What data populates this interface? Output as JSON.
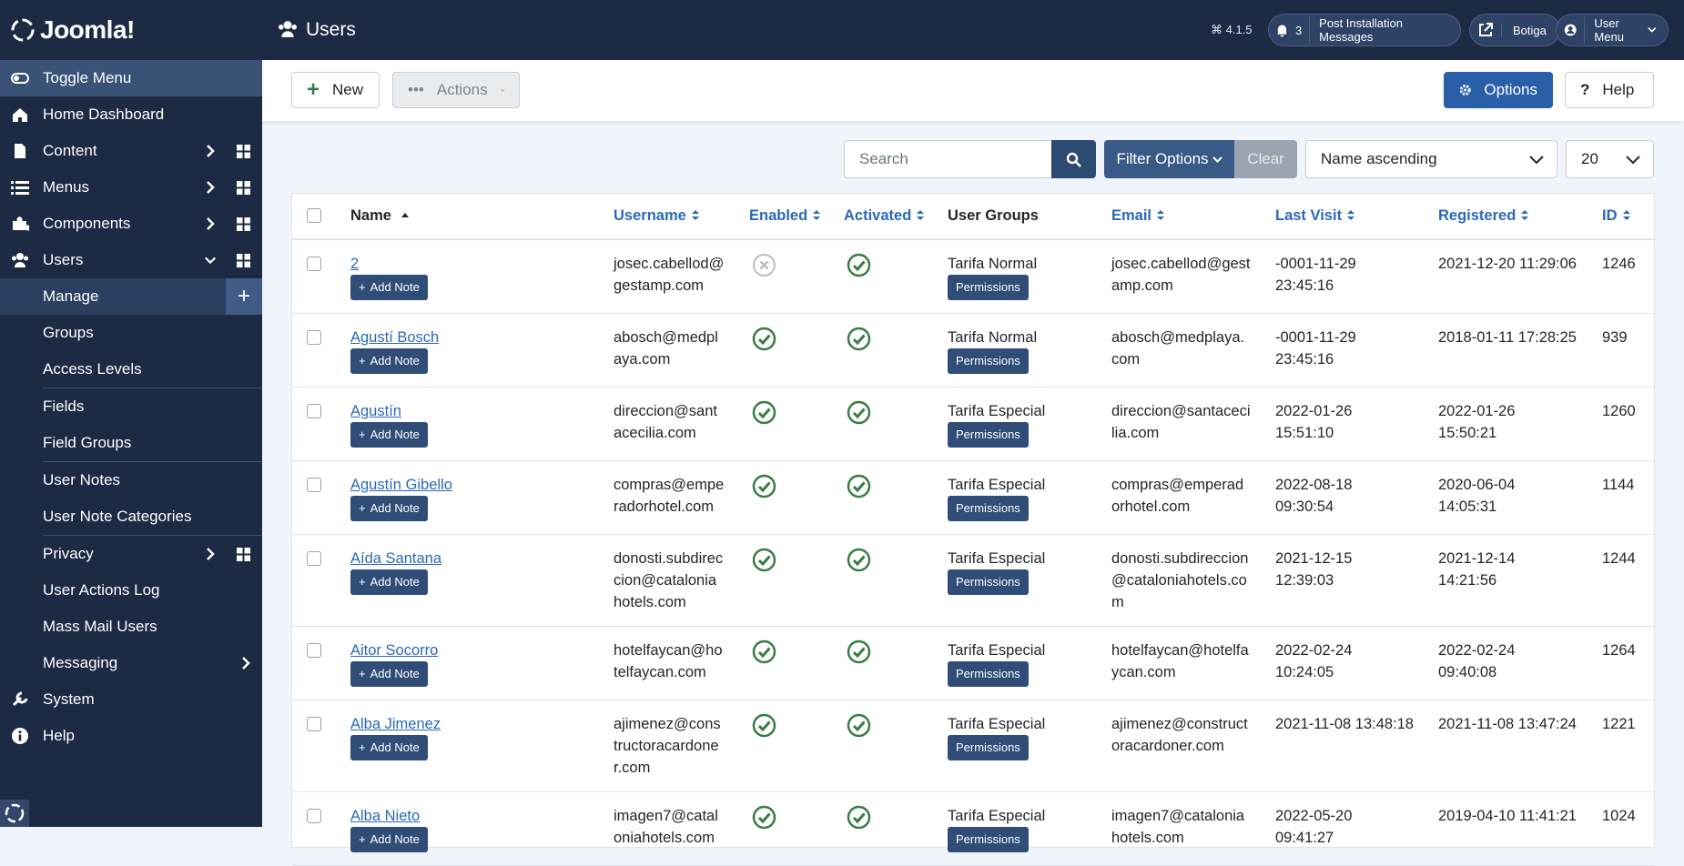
{
  "header": {
    "brand": "Joomla!",
    "title": "Users",
    "version": "4.1.5",
    "messages_count": 3,
    "messages": "Post Installation Messages",
    "site": "Botiga",
    "user_menu": "User Menu"
  },
  "sidebar": {
    "toggle_menu": "Toggle Menu",
    "items": [
      "Home Dashboard",
      "Content",
      "Menus",
      "Components",
      "Users"
    ],
    "users_submenu": [
      "Manage",
      "Groups",
      "Access Levels",
      "Fields",
      "Field Groups",
      "User Notes",
      "User Note Categories",
      "Privacy",
      "User Actions Log",
      "Mass Mail Users",
      "Messaging"
    ],
    "bottom_items": [
      "System",
      "Help"
    ]
  },
  "toolbar": {
    "new": "New",
    "actions": "Actions",
    "options": "Options",
    "help": "Help"
  },
  "filters": {
    "search_placeholder": "Search",
    "filter_options": "Filter Options",
    "clear": "Clear",
    "ordering": "Name ascending",
    "list_limit": 20
  },
  "table": {
    "columns": [
      "Name",
      "Username",
      "Enabled",
      "Activated",
      "User Groups",
      "Email",
      "Last Visit",
      "Registered",
      "ID"
    ],
    "add_note": "Add Note",
    "permissions": "Permissions",
    "rows": [
      {
        "name": "2",
        "username": "josec.cabellod@gestamp.com",
        "enabled": false,
        "activated": true,
        "user_group": "Tarifa Normal",
        "email": "josec.cabellod@gestamp.com",
        "last_visit": "-0001-11-29 23:45:16",
        "registered": "2021-12-20 11:29:06",
        "id": 1246
      },
      {
        "name": "Agustí Bosch",
        "username": "abosch@medplaya.com",
        "enabled": true,
        "activated": true,
        "user_group": "Tarifa Normal",
        "email": "abosch@medplaya.com",
        "last_visit": "-0001-11-29 23:45:16",
        "registered": "2018-01-11 17:28:25",
        "id": 939
      },
      {
        "name": "Agustín",
        "username": "direccion@santacecilia.com",
        "enabled": true,
        "activated": true,
        "user_group": "Tarifa Especial",
        "email": "direccion@santacecilia.com",
        "last_visit": "2022-01-26 15:51:10",
        "registered": "2022-01-26 15:50:21",
        "id": 1260
      },
      {
        "name": "Agustín Gibello",
        "username": "compras@emperadorhotel.com",
        "enabled": true,
        "activated": true,
        "user_group": "Tarifa Especial",
        "email": "compras@emperadorhotel.com",
        "last_visit": "2022-08-18 09:30:54",
        "registered": "2020-06-04 14:05:31",
        "id": 1144
      },
      {
        "name": "Aída Santana",
        "username": "donosti.subdireccion@cataloniahotels.com",
        "enabled": true,
        "activated": true,
        "user_group": "Tarifa Especial",
        "email": "donosti.subdireccion@cataloniahotels.com",
        "last_visit": "2021-12-15 12:39:03",
        "registered": "2021-12-14 14:21:56",
        "id": 1244
      },
      {
        "name": "Aitor Socorro",
        "username": "hotelfaycan@hotelfaycan.com",
        "enabled": true,
        "activated": true,
        "user_group": "Tarifa Especial",
        "email": "hotelfaycan@hotelfaycan.com",
        "last_visit": "2022-02-24 10:24:05",
        "registered": "2022-02-24 09:40:08",
        "id": 1264
      },
      {
        "name": "Alba Jimenez",
        "username": "ajimenez@constructoracardoner.com",
        "enabled": true,
        "activated": true,
        "user_group": "Tarifa Especial",
        "email": "ajimenez@constructoracardoner.com",
        "last_visit": "2021-11-08 13:48:18",
        "registered": "2021-11-08 13:47:24",
        "id": 1221
      },
      {
        "name": "Alba Nieto",
        "username": "imagen7@cataloniahotels.com",
        "enabled": true,
        "activated": true,
        "user_group": "Tarifa Especial",
        "email": "imagen7@cataloniahotels.com",
        "last_visit": "2022-05-20 09:41:27",
        "registered": "2019-04-10 11:41:21",
        "id": 1024
      }
    ]
  }
}
